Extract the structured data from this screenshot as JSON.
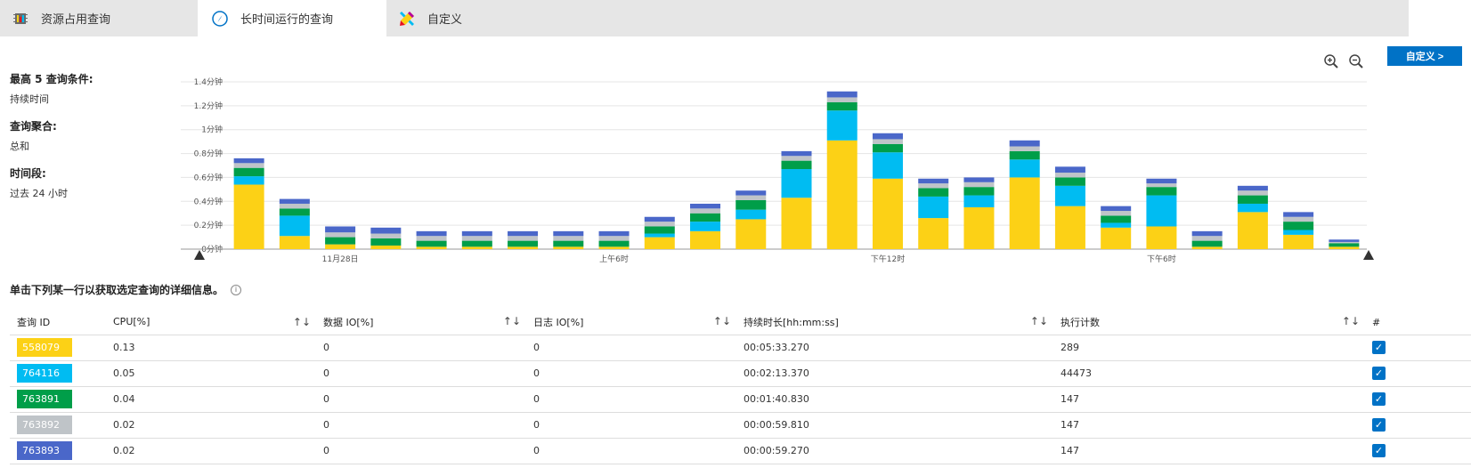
{
  "tabs": [
    {
      "label": "资源占用查询",
      "icon": "cpu-chip-icon"
    },
    {
      "label": "长时间运行的查询",
      "icon": "compass-icon"
    },
    {
      "label": "自定义",
      "icon": "pencil-ruler-icon"
    }
  ],
  "active_tab": 1,
  "side": {
    "criteria_title": "最高 5 查询条件:",
    "criteria_value": "持续时间",
    "aggregation_title": "查询聚合:",
    "aggregation_value": "总和",
    "period_title": "时间段:",
    "period_value": "过去 24 小时"
  },
  "toolbar": {
    "customize_label": "自定义 >",
    "zoom_in_icon": "zoom-in-icon",
    "zoom_out_icon": "zoom-out-icon"
  },
  "hint": "单击下列某一行以获取选定查询的详细信息。",
  "table": {
    "headers": [
      "查询 ID",
      "CPU[%]",
      "数据 IO[%]",
      "日志 IO[%]",
      "持续时长[hh:mm:ss]",
      "执行计数",
      "#"
    ],
    "sort_glyph": "↑↓",
    "rows": [
      {
        "id": "558079",
        "color": "#fcd116",
        "cpu": "0.13",
        "data_io": "0",
        "log_io": "0",
        "duration": "00:05:33.270",
        "count": "289",
        "checked": true
      },
      {
        "id": "764116",
        "color": "#00bcf2",
        "cpu": "0.05",
        "data_io": "0",
        "log_io": "0",
        "duration": "00:02:13.370",
        "count": "44473",
        "checked": true
      },
      {
        "id": "763891",
        "color": "#009e49",
        "cpu": "0.04",
        "data_io": "0",
        "log_io": "0",
        "duration": "00:01:40.830",
        "count": "147",
        "checked": true
      },
      {
        "id": "763892",
        "color": "#bfc4c8",
        "cpu": "0.02",
        "data_io": "0",
        "log_io": "0",
        "duration": "00:00:59.810",
        "count": "147",
        "checked": true
      },
      {
        "id": "763893",
        "color": "#4a67c9",
        "cpu": "0.02",
        "data_io": "0",
        "log_io": "0",
        "duration": "00:00:59.270",
        "count": "147",
        "checked": true
      }
    ]
  },
  "chart_data": {
    "type": "bar",
    "stacked": true,
    "ylim": [
      0,
      1.4
    ],
    "yticks": [
      "0分钟",
      "0.2分钟",
      "0.4分钟",
      "0.6分钟",
      "0.8分钟",
      "1分钟",
      "1.2分钟",
      "1.4分钟"
    ],
    "xtick_labels": [
      {
        "index": 2,
        "label": "11月28日"
      },
      {
        "index": 8,
        "label": "上午6时"
      },
      {
        "index": 14,
        "label": "下午12时"
      },
      {
        "index": 20,
        "label": "下午6时"
      }
    ],
    "x_count": 25,
    "series": [
      {
        "name": "558079",
        "color": "#fcd116",
        "values": [
          0.54,
          0.11,
          0.04,
          0.03,
          0.02,
          0.02,
          0.02,
          0.02,
          0.02,
          0.1,
          0.15,
          0.25,
          0.43,
          0.91,
          0.59,
          0.26,
          0.35,
          0.6,
          0.36,
          0.18,
          0.19,
          0.02,
          0.31,
          0.12,
          0.02
        ]
      },
      {
        "name": "764116",
        "color": "#00bcf2",
        "values": [
          0.07,
          0.17,
          0.0,
          0.0,
          0.0,
          0.0,
          0.0,
          0.0,
          0.0,
          0.03,
          0.08,
          0.08,
          0.24,
          0.25,
          0.22,
          0.18,
          0.1,
          0.15,
          0.17,
          0.04,
          0.26,
          0.0,
          0.07,
          0.04,
          0.0
        ]
      },
      {
        "name": "763891",
        "color": "#009e49",
        "values": [
          0.07,
          0.06,
          0.06,
          0.06,
          0.05,
          0.05,
          0.05,
          0.05,
          0.05,
          0.06,
          0.07,
          0.08,
          0.07,
          0.07,
          0.07,
          0.07,
          0.07,
          0.07,
          0.07,
          0.06,
          0.07,
          0.05,
          0.07,
          0.07,
          0.03
        ]
      },
      {
        "name": "763892",
        "color": "#bfc4c8",
        "values": [
          0.04,
          0.04,
          0.04,
          0.04,
          0.04,
          0.04,
          0.04,
          0.04,
          0.04,
          0.04,
          0.04,
          0.04,
          0.04,
          0.04,
          0.04,
          0.04,
          0.04,
          0.04,
          0.04,
          0.04,
          0.03,
          0.04,
          0.04,
          0.04,
          0.01
        ]
      },
      {
        "name": "763893",
        "color": "#4a67c9",
        "values": [
          0.04,
          0.04,
          0.05,
          0.05,
          0.04,
          0.04,
          0.04,
          0.04,
          0.04,
          0.04,
          0.04,
          0.04,
          0.04,
          0.05,
          0.05,
          0.04,
          0.04,
          0.05,
          0.05,
          0.04,
          0.04,
          0.04,
          0.04,
          0.04,
          0.02
        ]
      }
    ]
  }
}
